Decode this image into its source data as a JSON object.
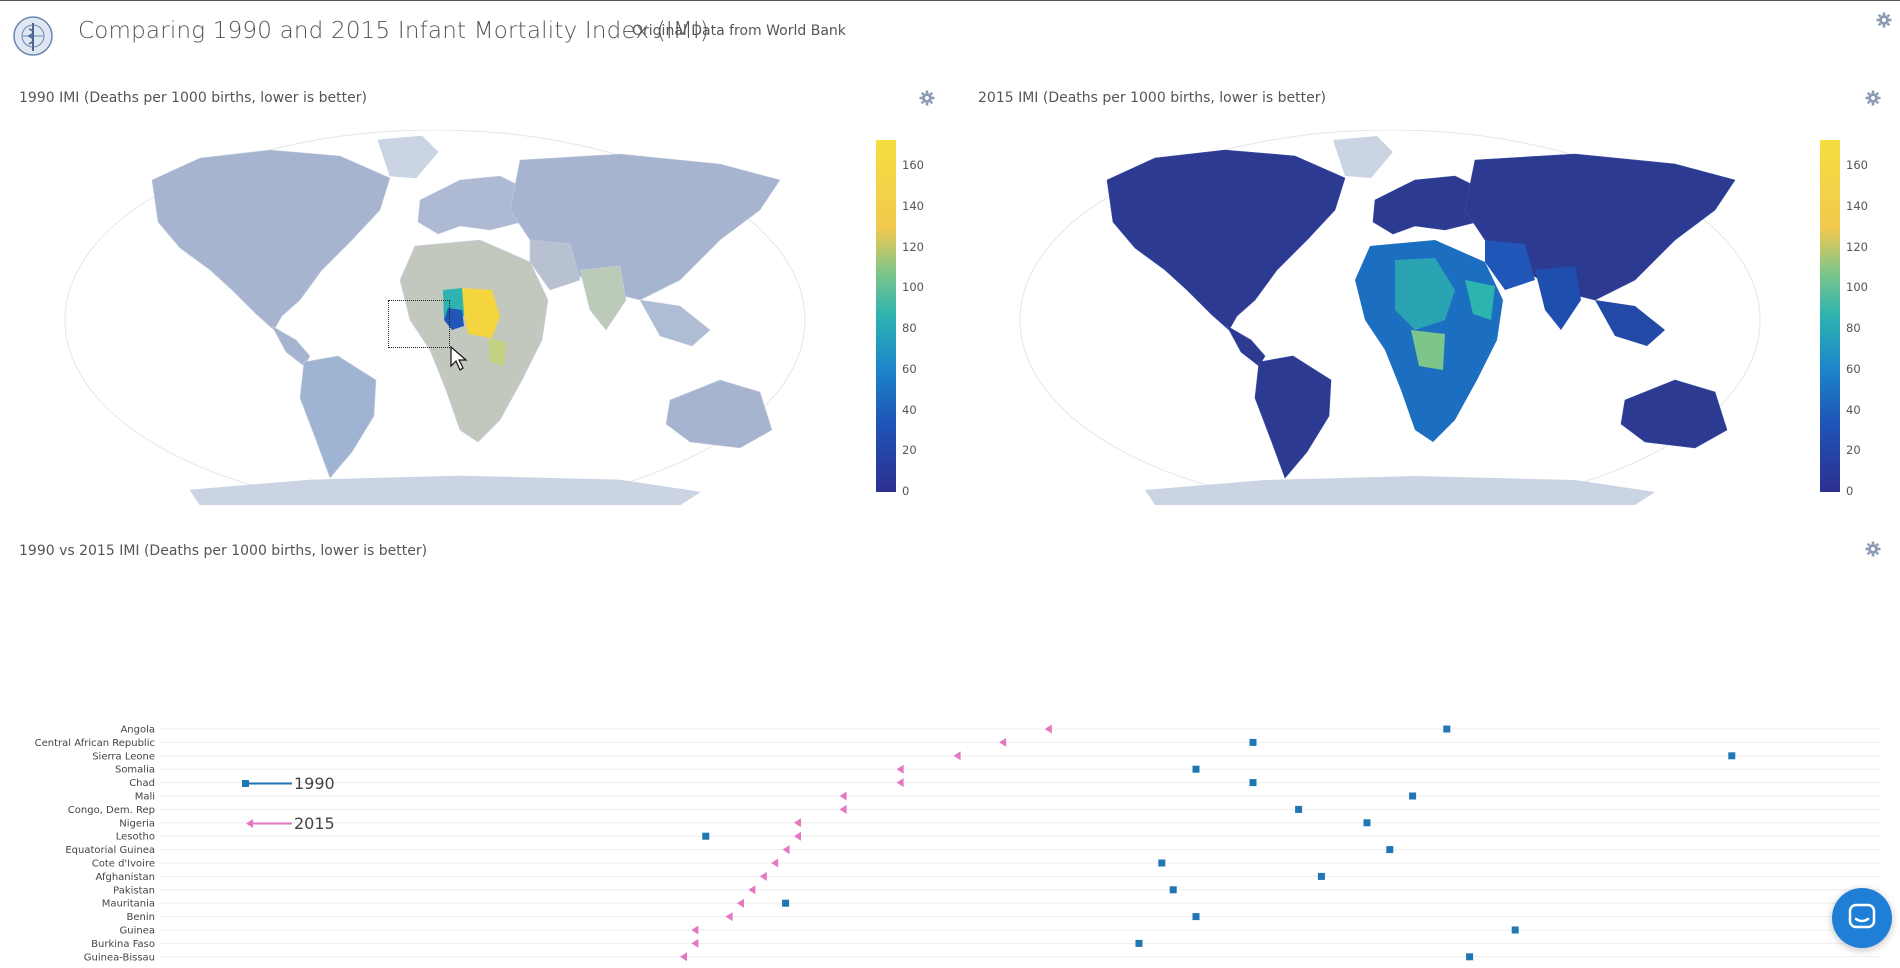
{
  "header": {
    "title": "Comparing 1990 and 2015 Infant Mortality Index (IMI)",
    "subtitle": "Original Data from World Bank",
    "logo_icon": "who-emblem-icon"
  },
  "map1990": {
    "title": "1990 IMI (Deaths per 1000 births, lower is better)",
    "colorbar_ticks": [
      "160",
      "140",
      "120",
      "100",
      "80",
      "60",
      "40",
      "20",
      "0"
    ]
  },
  "map2015": {
    "title": "2015 IMI (Deaths per 1000 births, lower is better)",
    "colorbar_ticks": [
      "160",
      "140",
      "120",
      "100",
      "80",
      "60",
      "40",
      "20",
      "0"
    ]
  },
  "colors": {
    "scale": [
      "#2d2f8f",
      "#1f56b8",
      "#1c86c9",
      "#2db3b0",
      "#7cc58b",
      "#c7d66a",
      "#f4de3f"
    ],
    "marker_1990": "#1f77b4",
    "marker_2015": "#e377c2",
    "chat": "#1f7fd6"
  },
  "chart_data": {
    "type": "scatter",
    "title": "1990 vs 2015 IMI (Deaths per 1000 births, lower is better)",
    "legend": [
      "1990",
      "2015"
    ],
    "categories": [
      "Angola",
      "Central African Republic",
      "Sierra Leone",
      "Somalia",
      "Chad",
      "Mali",
      "Congo, Dem. Rep",
      "Nigeria",
      "Lesotho",
      "Equatorial Guinea",
      "Cote d'Ivoire",
      "Afghanistan",
      "Pakistan",
      "Mauritania",
      "Benin",
      "Guinea",
      "Burkina Faso",
      "Guinea-Bissau"
    ],
    "series": [
      {
        "name": "1990",
        "values": [
          132,
          115,
          157,
          110,
          115,
          129,
          119,
          125,
          67,
          127,
          107,
          121,
          108,
          74,
          110,
          138,
          105,
          134
        ]
      },
      {
        "name": "2015",
        "values": [
          97,
          93,
          89,
          84,
          84,
          79,
          79,
          75,
          75,
          74,
          73,
          72,
          71,
          70,
          69,
          66,
          66,
          65
        ]
      }
    ],
    "xlim": [
      20,
      170
    ]
  },
  "gear_icon": "gear-icon",
  "chat_icon": "chat-bubble-icon"
}
